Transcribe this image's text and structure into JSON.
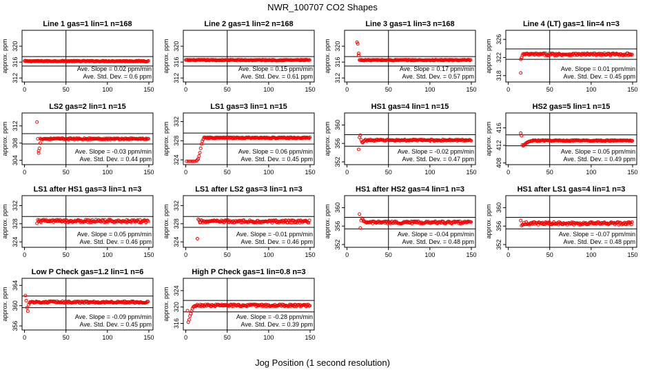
{
  "figure": {
    "title": "NWR_100707  CO2 Shapes",
    "xlabel": "Jog Position (1 second resolution)"
  },
  "colors": {
    "points": "#ff0000",
    "axis": "#000000",
    "background": "#ffffff"
  },
  "chart_data": [
    {
      "type": "scatter",
      "title": "Line 1 gas=1 lin=1 n=168",
      "ylabel": "approx. ppm",
      "xlim": [
        -3,
        155
      ],
      "ylim": [
        311,
        324
      ],
      "xticks": [
        0,
        50,
        100,
        150
      ],
      "yticks": [
        312,
        316,
        320
      ],
      "hlines": [
        317.4,
        315.0
      ],
      "vline": 50,
      "slope_text": "Ave. Slope =  0.02  ppm/min",
      "sd_text": "Ave. Std. Dev. =  0.6  ppm",
      "series": [
        {
          "name": "shape",
          "start": 0,
          "end": 150,
          "base": 316.25,
          "noise": 0.12,
          "spikes": []
        }
      ]
    },
    {
      "type": "scatter",
      "title": "Line 2 gas=1 lin=2 n=168",
      "ylabel": "approx. ppm",
      "xlim": [
        -3,
        155
      ],
      "ylim": [
        311,
        324
      ],
      "xticks": [
        0,
        50,
        100,
        150
      ],
      "yticks": [
        312,
        316,
        320
      ],
      "hlines": [
        317.4,
        315.0
      ],
      "vline": 50,
      "slope_text": "Ave. Slope =  0.15  ppm/min",
      "sd_text": "Ave. Std. Dev. =  0.61  ppm",
      "series": [
        {
          "name": "shape",
          "start": 0,
          "end": 150,
          "base": 316.5,
          "noise": 0.12,
          "spikes": []
        }
      ]
    },
    {
      "type": "scatter",
      "title": "Line 3 gas=1 lin=3 n=168",
      "ylabel": "approx. ppm",
      "xlim": [
        -3,
        155
      ],
      "ylim": [
        311,
        324
      ],
      "xticks": [
        0,
        50,
        100,
        150
      ],
      "yticks": [
        312,
        316,
        320
      ],
      "hlines": [
        317.4,
        315.0
      ],
      "vline": 50,
      "slope_text": "Ave. Slope =  0.17  ppm/min",
      "sd_text": "Ave. Std. Dev. =  0.57  ppm",
      "series": [
        {
          "name": "shape",
          "start": 15,
          "end": 150,
          "base": 316.5,
          "noise": 0.12,
          "spikes": [
            [
              12,
              321.0
            ],
            [
              13,
              320.6
            ],
            [
              14,
              318.2
            ],
            [
              14,
              317.7
            ]
          ]
        }
      ]
    },
    {
      "type": "scatter",
      "title": "Line 4 (LT) gas=1 lin=4 n=3",
      "ylabel": "approx. ppm",
      "xlim": [
        -3,
        155
      ],
      "ylim": [
        316.6,
        328
      ],
      "xticks": [
        0,
        50,
        100,
        150
      ],
      "yticks": [
        318,
        322,
        326
      ],
      "hlines": [
        323.9,
        321.6
      ],
      "vline": 50,
      "slope_text": "Ave. Slope =  0.01  ppm/min",
      "sd_text": "Ave. Std. Dev. =  0.45  ppm",
      "series": [
        {
          "name": "shape",
          "start": 18,
          "end": 150,
          "base": 322.7,
          "noise": 0.25,
          "spikes": [
            [
              15,
              318.6
            ],
            [
              15,
              321.6
            ],
            [
              16,
              322.0
            ],
            [
              17,
              322.5
            ]
          ]
        }
      ]
    },
    {
      "type": "scatter",
      "title": "LS2 gas=2 lin=1 n=15",
      "ylabel": "approx. ppm",
      "xlim": [
        -3,
        155
      ],
      "ylim": [
        303,
        315
      ],
      "xticks": [
        0,
        50,
        100,
        150
      ],
      "yticks": [
        304,
        308,
        312
      ],
      "hlines": [
        310.2,
        307.8
      ],
      "vline": 50,
      "slope_text": "Ave. Slope =  -0.03  ppm/min",
      "sd_text": "Ave. Std. Dev. =  0.44  ppm",
      "series": [
        {
          "name": "shape",
          "start": 19,
          "end": 150,
          "base": 309.0,
          "noise": 0.15,
          "spikes": [
            [
              15,
              312.9
            ],
            [
              16,
              309.0
            ],
            [
              17,
              305.7
            ],
            [
              17,
              306.2
            ],
            [
              18,
              306.8
            ],
            [
              19,
              308.0
            ]
          ]
        }
      ]
    },
    {
      "type": "scatter",
      "title": "LS1 gas=3 lin=1 n=15",
      "ylabel": "approx. ppm",
      "xlim": [
        -3,
        155
      ],
      "ylim": [
        323,
        333.8
      ],
      "xticks": [
        0,
        50,
        100,
        150
      ],
      "yticks": [
        324,
        328,
        332
      ],
      "hlines": [
        329.6,
        327.3
      ],
      "vline": 50,
      "slope_text": "Ave. Slope =  0.06  ppm/min",
      "sd_text": "Ave. Std. Dev. =  0.45  ppm",
      "series": [
        {
          "name": "shape",
          "start": 22,
          "end": 150,
          "base": 328.6,
          "noise": 0.13,
          "spikes": [
            [
              1,
              323.7
            ],
            [
              3,
              323.7
            ],
            [
              5,
              323.7
            ],
            [
              7,
              323.7
            ],
            [
              9,
              323.7
            ],
            [
              11,
              323.7
            ],
            [
              13,
              323.8
            ],
            [
              14,
              324.0
            ],
            [
              15,
              324.2
            ],
            [
              16,
              324.8
            ],
            [
              17,
              325.5
            ],
            [
              18,
              326.4
            ],
            [
              19,
              327.3
            ],
            [
              20,
              327.9
            ],
            [
              21,
              328.3
            ]
          ]
        }
      ]
    },
    {
      "type": "scatter",
      "title": "HS1 gas=4 lin=1 n=15",
      "ylabel": "approx. ppm",
      "xlim": [
        -3,
        155
      ],
      "ylim": [
        351.4,
        362.6
      ],
      "xticks": [
        0,
        50,
        100,
        150
      ],
      "yticks": [
        352,
        356,
        360
      ],
      "hlines": [
        357.9,
        355.4
      ],
      "vline": 50,
      "slope_text": "Ave. Slope =  -0.02  ppm/min",
      "sd_text": "Ave. Std. Dev. =  0.47  ppm",
      "series": [
        {
          "name": "shape",
          "start": 22,
          "end": 150,
          "base": 356.7,
          "noise": 0.15,
          "spikes": [
            [
              14,
              354.7
            ],
            [
              15,
              357.3
            ],
            [
              16,
              357.8
            ],
            [
              17,
              356.8
            ],
            [
              18,
              356.3
            ],
            [
              19,
              356.2
            ],
            [
              20,
              356.4
            ],
            [
              21,
              356.6
            ]
          ]
        }
      ]
    },
    {
      "type": "scatter",
      "title": "HS2 gas=5 lin=1 n=15",
      "ylabel": "approx. ppm",
      "xlim": [
        -3,
        155
      ],
      "ylim": [
        407.6,
        419.4
      ],
      "xticks": [
        0,
        50,
        100,
        150
      ],
      "yticks": [
        408,
        412,
        416
      ],
      "hlines": [
        414.4,
        411.9
      ],
      "vline": 50,
      "slope_text": "Ave. Slope =  0.05  ppm/min",
      "sd_text": "Ave. Std. Dev. =  0.49  ppm",
      "series": [
        {
          "name": "shape",
          "start": 30,
          "end": 150,
          "base": 413.1,
          "noise": 0.12,
          "spikes": [
            [
              15,
              414.8
            ],
            [
              16,
              414.2
            ],
            [
              17,
              412.1
            ],
            [
              18,
              411.9
            ],
            [
              19,
              412.1
            ],
            [
              20,
              412.3
            ],
            [
              21,
              412.4
            ],
            [
              22,
              412.6
            ],
            [
              23,
              412.7
            ],
            [
              24,
              412.8
            ],
            [
              25,
              412.9
            ],
            [
              26,
              412.9
            ],
            [
              27,
              413.0
            ],
            [
              28,
              413.0
            ],
            [
              29,
              413.0
            ]
          ]
        }
      ]
    },
    {
      "type": "scatter",
      "title": "LS1 after HS1 gas=3 lin=1 n=3",
      "ylabel": "approx. ppm",
      "xlim": [
        -3,
        155
      ],
      "ylim": [
        322.8,
        334.2
      ],
      "xticks": [
        0,
        50,
        100,
        150
      ],
      "yticks": [
        324,
        328,
        332
      ],
      "hlines": [
        329.6,
        327.2
      ],
      "vline": 50,
      "slope_text": "Ave. Slope =  0.05  ppm/min",
      "sd_text": "Ave. Std. Dev. =  0.46  ppm",
      "series": [
        {
          "name": "shape",
          "start": 16,
          "end": 150,
          "base": 328.6,
          "noise": 0.3,
          "spikes": [
            [
              15,
              328.1
            ]
          ]
        }
      ]
    },
    {
      "type": "scatter",
      "title": "LS1 after LS2 gas=3 lin=1 n=3",
      "ylabel": "approx. ppm",
      "xlim": [
        -3,
        155
      ],
      "ylim": [
        322.8,
        334.2
      ],
      "xticks": [
        0,
        50,
        100,
        150
      ],
      "yticks": [
        324,
        328,
        332
      ],
      "hlines": [
        329.6,
        327.2
      ],
      "vline": 50,
      "slope_text": "Ave. Slope =  -0.01  ppm/min",
      "sd_text": "Ave. Std. Dev. =  0.46  ppm",
      "series": [
        {
          "name": "shape",
          "start": 16,
          "end": 150,
          "base": 328.5,
          "noise": 0.3,
          "spikes": [
            [
              14,
              324.7
            ],
            [
              15,
              329.0
            ]
          ]
        }
      ]
    },
    {
      "type": "scatter",
      "title": "HS1 after HS2 gas=4 lin=1 n=3",
      "ylabel": "approx. ppm",
      "xlim": [
        -3,
        155
      ],
      "ylim": [
        351.4,
        362.6
      ],
      "xticks": [
        0,
        50,
        100,
        150
      ],
      "yticks": [
        352,
        356,
        360
      ],
      "hlines": [
        357.9,
        355.4
      ],
      "vline": 50,
      "slope_text": "Ave. Slope =  -0.04  ppm/min",
      "sd_text": "Ave. Std. Dev. =  0.48  ppm",
      "series": [
        {
          "name": "shape",
          "start": 20,
          "end": 150,
          "base": 356.8,
          "noise": 0.25,
          "spikes": [
            [
              15,
              358.6
            ],
            [
              16,
              355.6
            ],
            [
              17,
              357.2
            ],
            [
              18,
              357.7
            ],
            [
              19,
              357.5
            ]
          ]
        }
      ]
    },
    {
      "type": "scatter",
      "title": "HS1 after LS1 gas=4 lin=1 n=3",
      "ylabel": "approx. ppm",
      "xlim": [
        -3,
        155
      ],
      "ylim": [
        351.4,
        362.6
      ],
      "xticks": [
        0,
        50,
        100,
        150
      ],
      "yticks": [
        352,
        356,
        360
      ],
      "hlines": [
        357.9,
        355.4
      ],
      "vline": 50,
      "slope_text": "Ave. Slope =  -0.07  ppm/min",
      "sd_text": "Ave. Std. Dev. =  0.48  ppm",
      "series": [
        {
          "name": "shape",
          "start": 18,
          "end": 150,
          "base": 356.6,
          "noise": 0.3,
          "spikes": [
            [
              15,
              357.2
            ],
            [
              16,
              356.1
            ],
            [
              17,
              356.3
            ]
          ]
        }
      ]
    },
    {
      "type": "scatter",
      "title": "Low P Check gas=1.2 lin=1 n=6",
      "ylabel": "approx. ppm",
      "xlim": [
        -3,
        155
      ],
      "ylim": [
        355.2,
        365.4
      ],
      "xticks": [
        0,
        50,
        100,
        150
      ],
      "yticks": [
        356,
        360,
        364
      ],
      "hlines": [
        361.9,
        359.6
      ],
      "vline": 50,
      "slope_text": "Ave. Slope =  -0.09  ppm/min",
      "sd_text": "Ave. Std. Dev. =  0.45  ppm",
      "series": [
        {
          "name": "shape",
          "start": 6,
          "end": 150,
          "base": 360.7,
          "noise": 0.18,
          "spikes": [
            [
              1,
              362.0
            ],
            [
              2,
              361.0
            ],
            [
              3,
              359.6
            ],
            [
              4,
              358.9
            ],
            [
              5,
              360.2
            ]
          ]
        }
      ]
    },
    {
      "type": "scatter",
      "title": "High P Check gas=1 lin=0.8 n=3",
      "ylabel": "approx. ppm",
      "xlim": [
        -3,
        155
      ],
      "ylim": [
        314.4,
        327
      ],
      "xticks": [
        0,
        50,
        100,
        150
      ],
      "yticks": [
        316,
        320,
        324
      ],
      "hlines": [
        321.6,
        318.8
      ],
      "vline": 50,
      "slope_text": "Ave. Slope =  -0.28  ppm/min",
      "sd_text": "Ave. Std. Dev. =  0.39  ppm",
      "series": [
        {
          "name": "shape",
          "start": 12,
          "end": 150,
          "base": 320.4,
          "noise": 0.25,
          "spikes": [
            [
              2,
              319.1
            ],
            [
              3,
              316.3
            ],
            [
              4,
              316.9
            ],
            [
              5,
              317.8
            ],
            [
              6,
              318.4
            ],
            [
              7,
              319.0
            ],
            [
              8,
              319.6
            ],
            [
              9,
              320.0
            ],
            [
              10,
              320.2
            ],
            [
              11,
              320.3
            ]
          ]
        }
      ]
    }
  ]
}
